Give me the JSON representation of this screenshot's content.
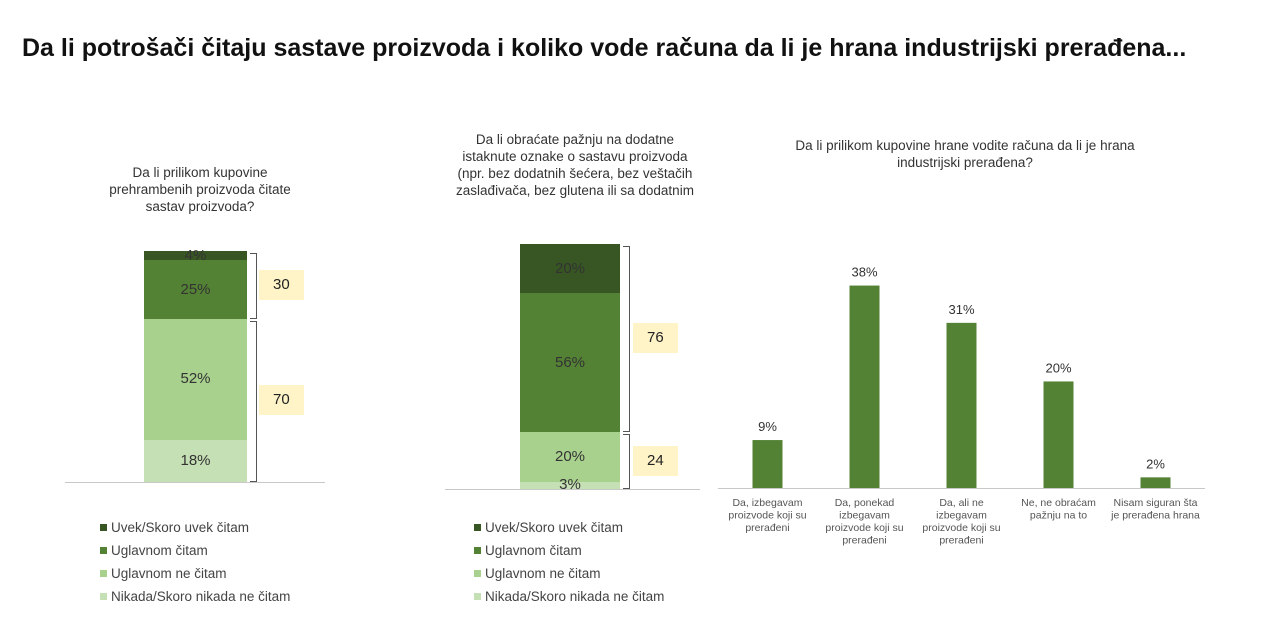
{
  "page": {
    "title": "Da li potrošači čitaju sastave proizvoda i koliko vode računa da li je hrana industrijski prerađena..."
  },
  "colors": {
    "darkest": "#375623",
    "dark": "#548235",
    "light": "#a9d18e",
    "lightest": "#c5e0b4",
    "bracket_box": "#fff4c8"
  },
  "chart_data": [
    {
      "type": "bar",
      "stacked": true,
      "title": "Da li prilikom kupovine prehrambenih proizvoda čitate sastav proizvoda?",
      "series": [
        {
          "name": "Uvek/Skoro uvek čitam",
          "value": 4,
          "label": "4%"
        },
        {
          "name": "Uglavnom čitam",
          "value": 25,
          "label": "25%"
        },
        {
          "name": "Uglavnom ne čitam",
          "value": 52,
          "label": "52%"
        },
        {
          "name": "Nikada/Skoro nikada ne čitam",
          "value": 18,
          "label": "18%"
        }
      ],
      "groups": [
        {
          "value": 30,
          "label": "30"
        },
        {
          "value": 70,
          "label": "70"
        }
      ]
    },
    {
      "type": "bar",
      "stacked": true,
      "title": "Da li obraćate pažnju na dodatne istaknute oznake o sastavu proizvoda (npr. bez dodatnih šećera, bez veštačih zaslađivača, bez glutena ili sa dodatnim",
      "series": [
        {
          "name": "Uvek/Skoro uvek čitam",
          "value": 20,
          "label": "20%"
        },
        {
          "name": "Uglavnom čitam",
          "value": 56,
          "label": "56%"
        },
        {
          "name": "Uglavnom ne čitam",
          "value": 20,
          "label": "20%"
        },
        {
          "name": "Nikada/Skoro nikada ne čitam",
          "value": 3,
          "label": "3%"
        }
      ],
      "groups": [
        {
          "value": 76,
          "label": "76"
        },
        {
          "value": 24,
          "label": "24"
        }
      ]
    },
    {
      "type": "bar",
      "title": "Da li prilikom kupovine hrane vodite računa da li je hrana industrijski prerađena?",
      "categories": [
        "Da, izbegavam proizvode koji su prerađeni",
        "Da, ponekad izbegavam proizvode koji su prerađeni",
        "Da, ali ne izbegavam proizvode koji su prerađeni",
        "Ne, ne obraćam pažnju na to",
        "Nisam siguran šta je prerađena hrana"
      ],
      "values": [
        9,
        38,
        31,
        20,
        2
      ],
      "labels": [
        "9%",
        "38%",
        "31%",
        "20%",
        "2%"
      ],
      "ylim": [
        0,
        40
      ]
    }
  ]
}
